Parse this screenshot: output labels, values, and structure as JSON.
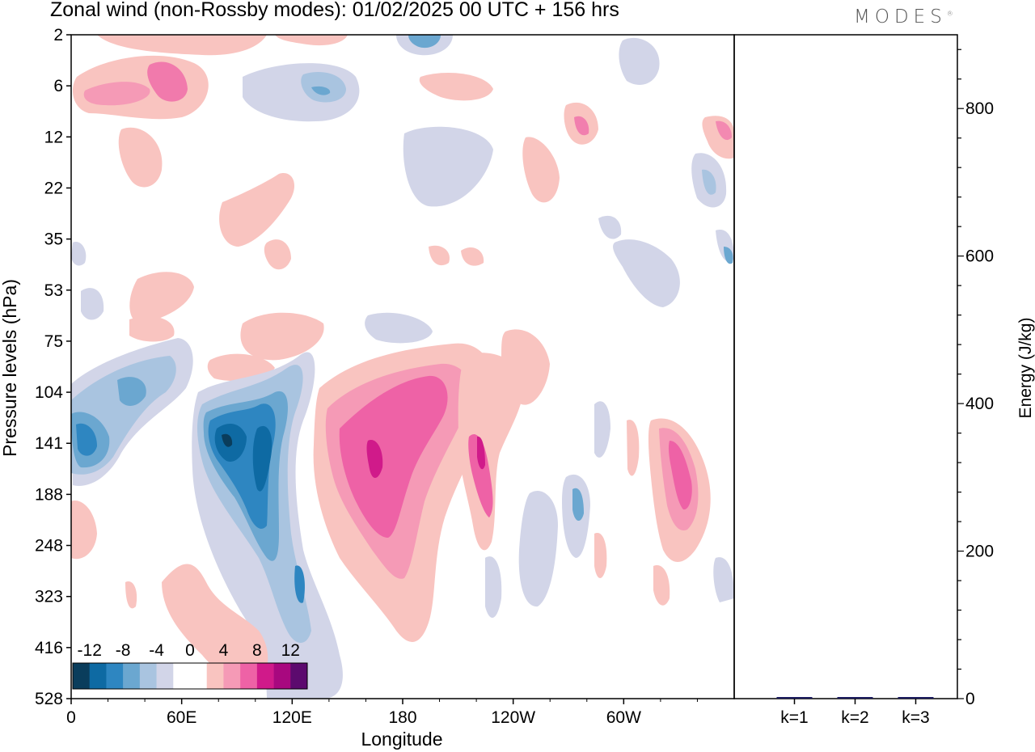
{
  "title": "Zonal wind (non-Rossby modes):  01/02/2025  00 UTC  + 156 hrs",
  "logo": "MODES",
  "logo_mark": "®",
  "chart_data": [
    {
      "type": "heatmap",
      "title": "Zonal wind (non-Rossby modes):  01/02/2025  00 UTC  + 156 hrs",
      "xlabel": "Longitude",
      "ylabel": "Pressure levels (hPa)",
      "x_ticks": [
        "0",
        "60E",
        "120E",
        "180",
        "120W",
        "60W"
      ],
      "x_tick_degrees": [
        0,
        60,
        120,
        180,
        240,
        300
      ],
      "xlim": [
        0,
        360
      ],
      "y_ticks": [
        "2",
        "6",
        "12",
        "22",
        "35",
        "53",
        "75",
        "104",
        "141",
        "188",
        "248",
        "323",
        "416",
        "528"
      ],
      "colorbar": {
        "labels": [
          "-12",
          "-8",
          "-4",
          "0",
          "4",
          "8",
          "12"
        ],
        "colors": [
          "#0a3d5c",
          "#0e6aa3",
          "#2e86c1",
          "#6ba7d0",
          "#a9c4e0",
          "#d2d5e8",
          "#ffffff",
          "#ffffff",
          "#f9c4c0",
          "#f59ab6",
          "#ee62a6",
          "#d01a8a",
          "#a8087f",
          "#5c0a6e"
        ]
      },
      "features": [
        {
          "lon": 10,
          "level": "141",
          "value": -8
        },
        {
          "lon": 33,
          "level": "104",
          "value": -5
        },
        {
          "lon": 55,
          "level": "104",
          "value": -3
        },
        {
          "lon": 82,
          "level": "141",
          "value": -13
        },
        {
          "lon": 103,
          "level": "188",
          "value": -10
        },
        {
          "lon": 120,
          "level": "104",
          "value": -6
        },
        {
          "lon": 165,
          "level": "141",
          "value": 9
        },
        {
          "lon": 190,
          "level": "104",
          "value": 7
        },
        {
          "lon": 223,
          "level": "141",
          "value": 12
        },
        {
          "lon": 278,
          "level": "188",
          "value": -5
        },
        {
          "lon": 330,
          "level": "188",
          "value": 9
        },
        {
          "lon": 140,
          "level": "6",
          "value": -5
        },
        {
          "lon": 190,
          "level": "2",
          "value": -5
        },
        {
          "lon": 45,
          "level": "6",
          "value": 6
        },
        {
          "lon": 10,
          "level": "6",
          "value": 5
        }
      ]
    },
    {
      "type": "bar",
      "categories": [
        "k=1",
        "k=2",
        "k=3"
      ],
      "values": [
        1,
        1,
        1
      ],
      "ylabel": "Energy (J/kg)",
      "ylim": [
        0,
        900
      ],
      "y_ticks": [
        0,
        200,
        400,
        600,
        800
      ]
    }
  ]
}
